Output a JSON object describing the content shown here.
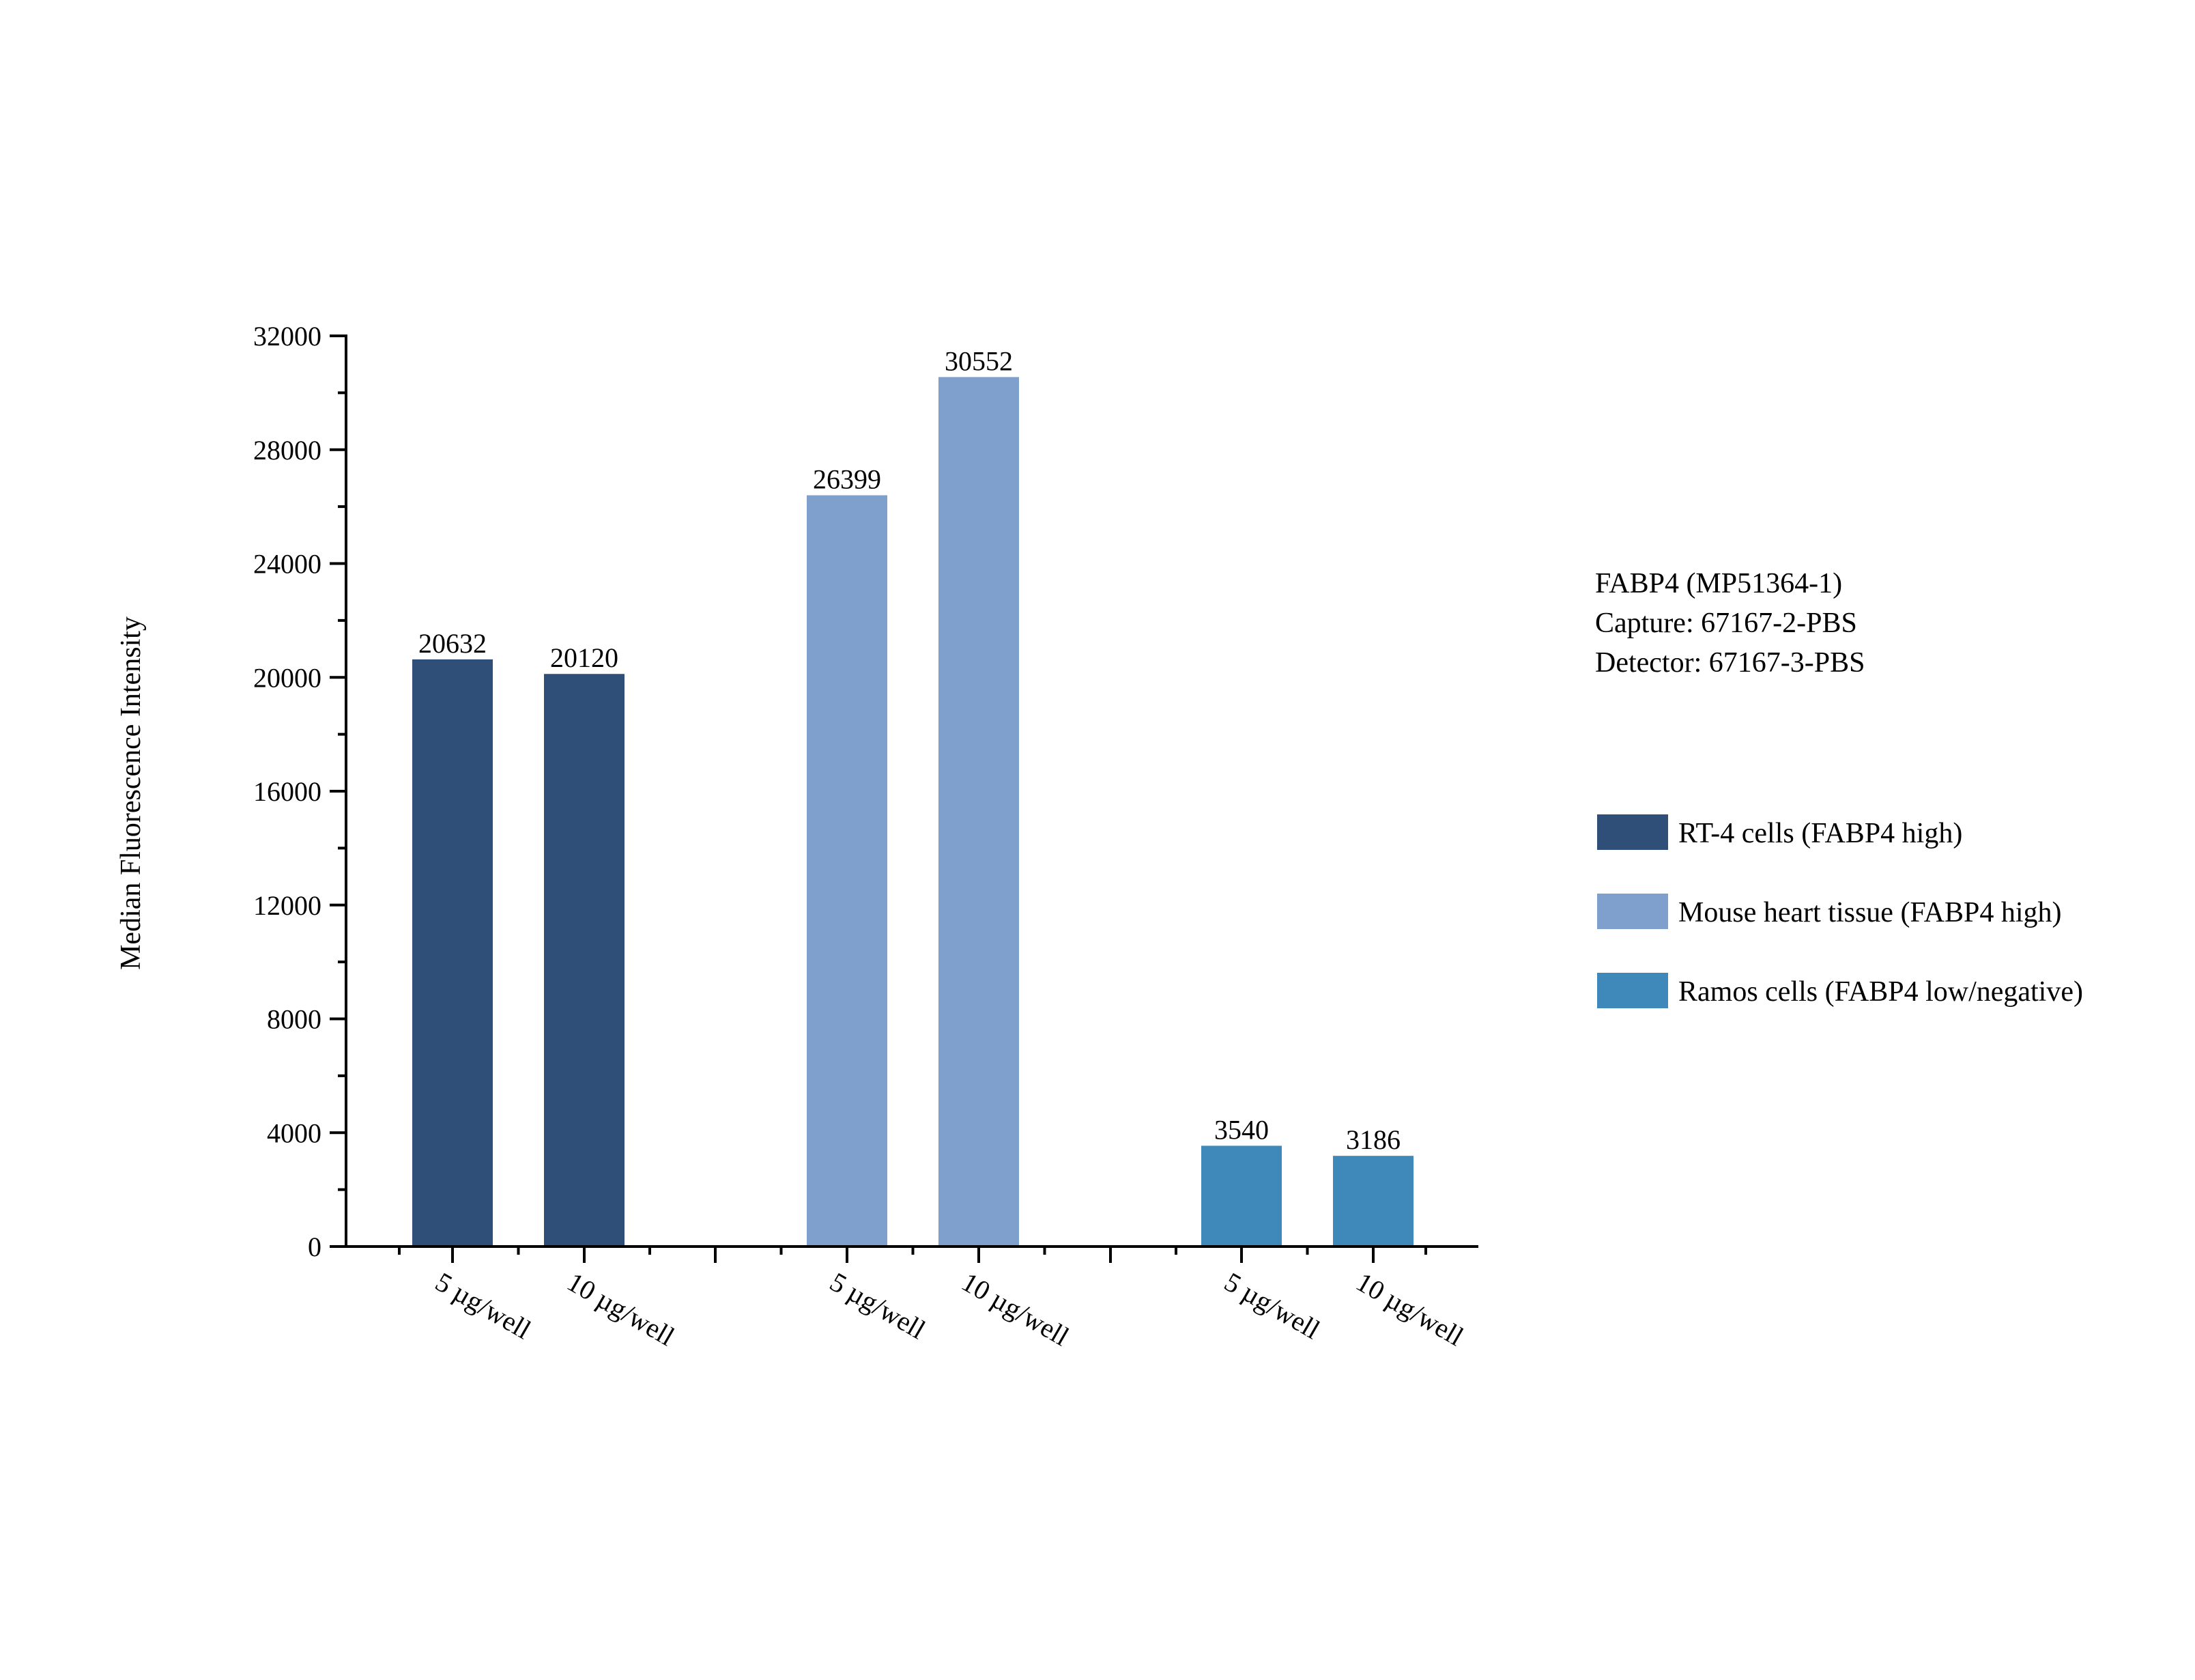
{
  "chart_data": {
    "type": "bar",
    "ylabel": "Median Fluorescence Intensity",
    "ylim": [
      0,
      32000
    ],
    "y_ticks": [
      0,
      4000,
      8000,
      12000,
      16000,
      20000,
      24000,
      28000,
      32000
    ],
    "y_tick_labels": [
      "0",
      "4000",
      "8000",
      "12000",
      "16000",
      "20000",
      "24000",
      "28000",
      "32000"
    ],
    "annotation": [
      "FABP4 (MP51364-1)",
      "Capture: 67167-2-PBS",
      "Detector: 67167-3-PBS"
    ],
    "legend_position": "right",
    "grid": false,
    "groups": [
      {
        "name": "RT-4 cells (FABP4 high)",
        "color": "#2f4f78",
        "bars": [
          {
            "category": "5 µg/well",
            "value": 20632,
            "label": "20632"
          },
          {
            "category": "10 µg/well",
            "value": 20120,
            "label": "20120"
          }
        ]
      },
      {
        "name": "Mouse heart tissue (FABP4 high)",
        "color": "#7f9fcc",
        "bars": [
          {
            "category": "5 µg/well",
            "value": 26399,
            "label": "26399"
          },
          {
            "category": "10 µg/well",
            "value": 30552,
            "label": "30552"
          }
        ]
      },
      {
        "name": "Ramos cells (FABP4 low/negative)",
        "color": "#3e89b9",
        "bars": [
          {
            "category": "5 µg/well",
            "value": 3540,
            "label": "3540"
          },
          {
            "category": "10 µg/well",
            "value": 3186,
            "label": "3186"
          }
        ]
      }
    ]
  }
}
